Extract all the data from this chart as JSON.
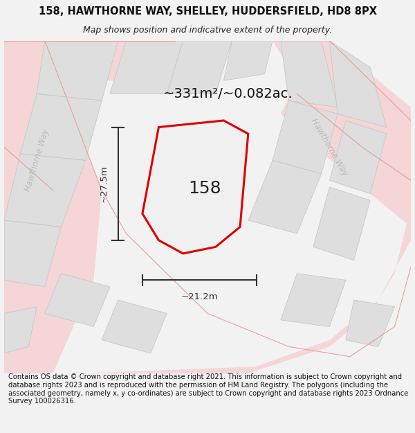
{
  "title_line1": "158, HAWTHORNE WAY, SHELLEY, HUDDERSFIELD, HD8 8PX",
  "title_line2": "Map shows position and indicative extent of the property.",
  "footer_text": "Contains OS data © Crown copyright and database right 2021. This information is subject to Crown copyright and database rights 2023 and is reproduced with the permission of HM Land Registry. The polygons (including the associated geometry, namely x, y co-ordinates) are subject to Crown copyright and database rights 2023 Ordnance Survey 100026316.",
  "area_label": "~331m²/~0.082ac.",
  "width_label": "~21.2m",
  "height_label": "~27.5m",
  "plot_number": "158",
  "bg_color": "#f2f2f2",
  "map_bg": "#ffffff",
  "road_fill": "#f5d5d5",
  "road_line": "#e8a0a0",
  "building_fill": "#dedede",
  "building_edge": "#c8c8c8",
  "plot_edge": "#dd0000",
  "plot_fill": "#f0f0f0",
  "dim_color": "#333333",
  "street_label_color": "#bbbbbb",
  "title_fontsize": 10.5,
  "subtitle_fontsize": 9,
  "footer_fontsize": 7.2,
  "area_fontsize": 14,
  "dim_fontsize": 9.5,
  "plot_label_fontsize": 18,
  "street_fontsize": 8.5
}
